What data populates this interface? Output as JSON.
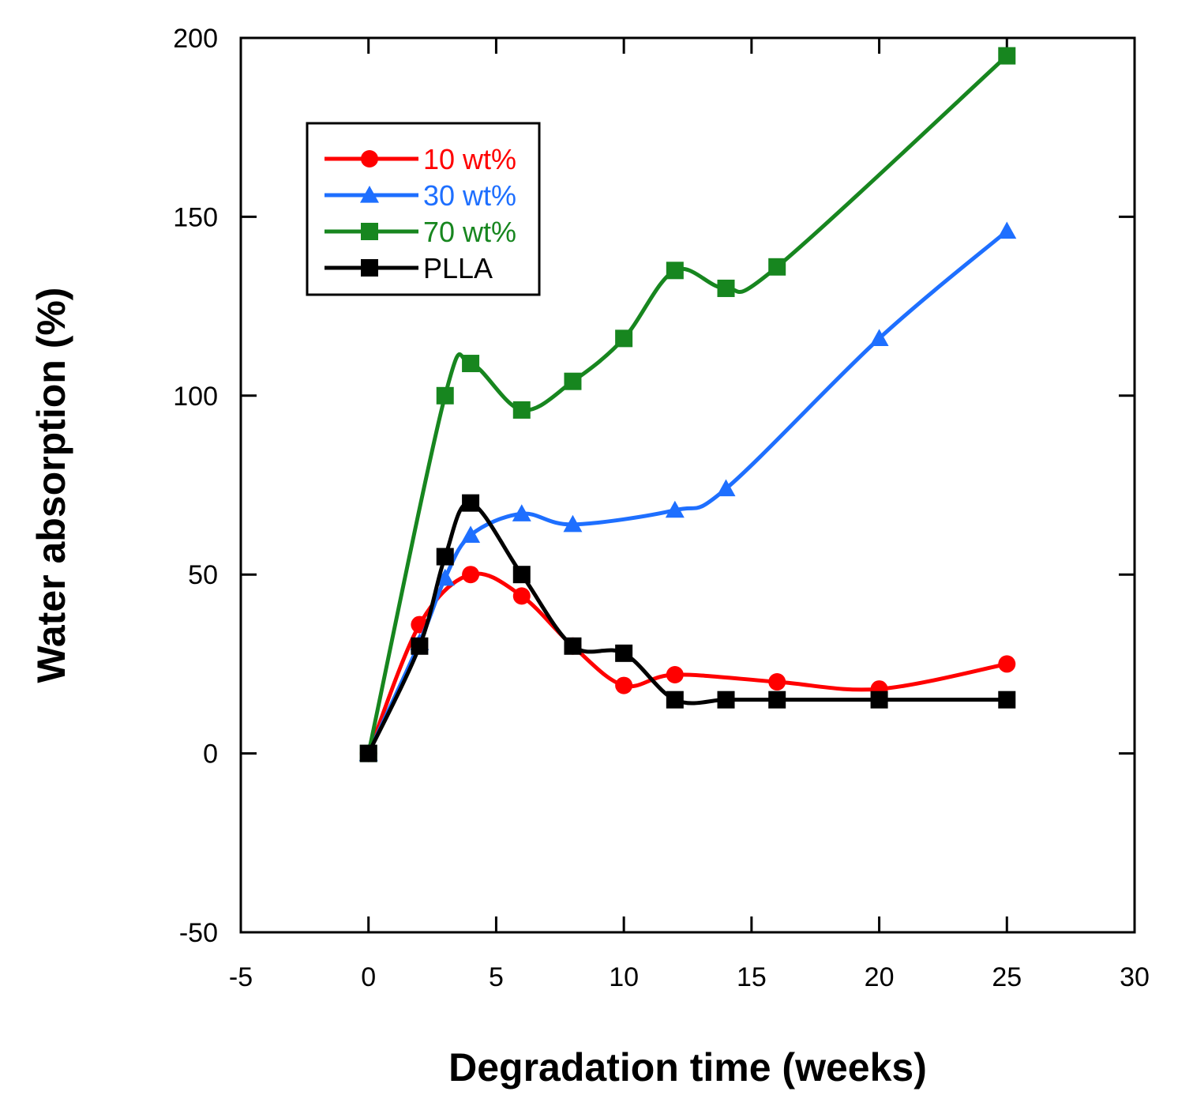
{
  "chart_data": {
    "type": "line",
    "xlabel": "Degradation time (weeks)",
    "ylabel": "Water absorption (%)",
    "xlim": [
      -5,
      30
    ],
    "ylim": [
      -50,
      200
    ],
    "xticks": [
      "-5",
      "0",
      "5",
      "10",
      "15",
      "20",
      "25",
      "30"
    ],
    "yticks": [
      "-50",
      "0",
      "50",
      "100",
      "150",
      "200"
    ],
    "legend_position": "top-left",
    "series": [
      {
        "name": "10 wt%",
        "color": "#ff0000",
        "marker": "circle",
        "x": [
          0,
          2,
          4,
          6,
          8,
          10,
          12,
          16,
          20,
          25
        ],
        "y": [
          0,
          36,
          50,
          44,
          30,
          19,
          22,
          20,
          18,
          25
        ]
      },
      {
        "name": "30 wt%",
        "color": "#1e6fff",
        "marker": "triangle",
        "x": [
          0,
          2,
          3,
          4,
          6,
          8,
          12,
          14,
          20,
          25
        ],
        "y": [
          0,
          31,
          49,
          61,
          67,
          64,
          68,
          74,
          116,
          146
        ]
      },
      {
        "name": "70 wt%",
        "color": "#17861f",
        "marker": "square",
        "x": [
          0,
          3,
          4,
          6,
          8,
          10,
          12,
          14,
          16,
          25
        ],
        "y": [
          0,
          100,
          109,
          96,
          104,
          116,
          135,
          130,
          136,
          195
        ]
      },
      {
        "name": "PLLA",
        "color": "#000000",
        "marker": "square",
        "x": [
          0,
          2,
          3,
          4,
          6,
          8,
          10,
          12,
          14,
          16,
          20,
          25
        ],
        "y": [
          0,
          30,
          55,
          70,
          50,
          30,
          28,
          15,
          15,
          15,
          15,
          15
        ]
      }
    ]
  }
}
